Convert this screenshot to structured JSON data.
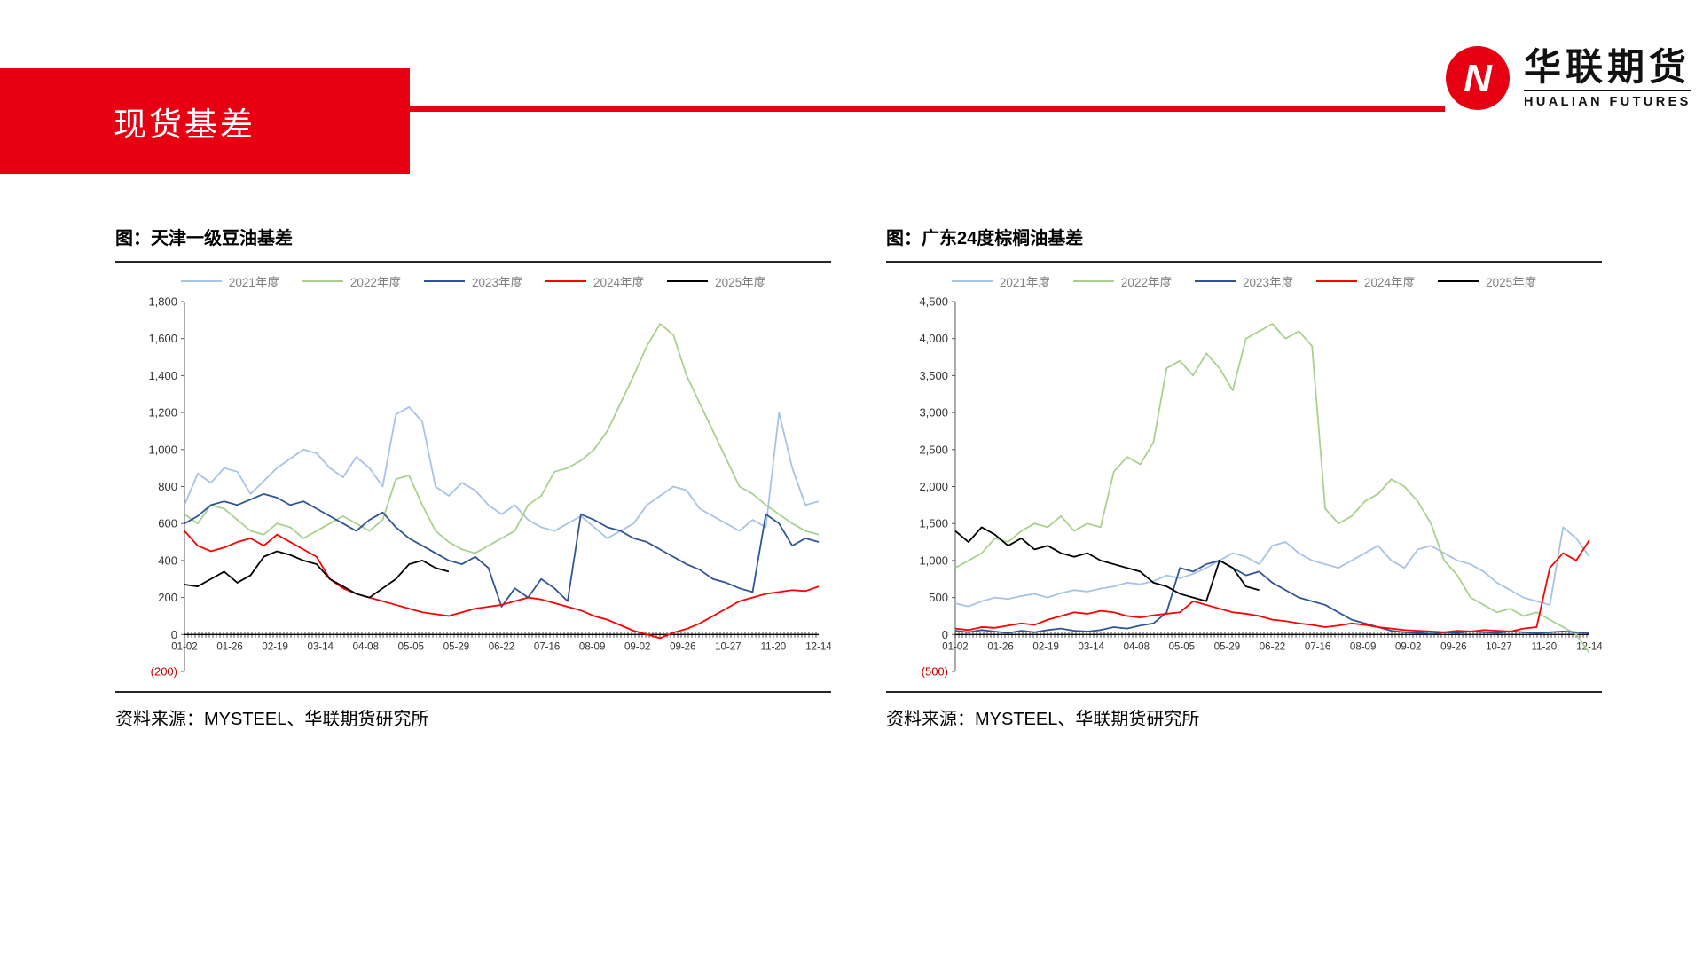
{
  "page": {
    "banner_title": "现货基差"
  },
  "logo": {
    "mark_letter": "N",
    "brand_cn": "华联期货",
    "brand_en": "HUALIAN FUTURES"
  },
  "colors": {
    "brand_red": "#e60012",
    "negative_tick_label": "#c00000",
    "axis_line": "#595959",
    "zero_axis": "#000000",
    "legend_label": "#7f7f7f"
  },
  "chart_data": [
    {
      "type": "line",
      "title": "图：天津一级豆油基差",
      "source": "资料来源：MYSTEEL、华联期货研究所",
      "grid": false,
      "legend_position": "top",
      "ylim": [
        -200,
        1800
      ],
      "y_tick_step": 200,
      "y_tick_labels": [
        "1,800",
        "1,600",
        "1,400",
        "1,200",
        "1,000",
        "800",
        "600",
        "400",
        "200",
        "0",
        "(200)"
      ],
      "x_tick_labels": [
        "01-02",
        "01-26",
        "02-19",
        "03-14",
        "04-08",
        "05-05",
        "05-29",
        "06-22",
        "07-16",
        "08-09",
        "09-02",
        "09-26",
        "10-27",
        "11-20",
        "12-14"
      ],
      "series": [
        {
          "name": "2021年度",
          "color": "#a6c3e8",
          "values": [
            700,
            870,
            820,
            900,
            880,
            760,
            830,
            900,
            950,
            1000,
            980,
            900,
            850,
            960,
            900,
            800,
            1190,
            1230,
            1150,
            800,
            750,
            820,
            780,
            700,
            650,
            700,
            620,
            580,
            560,
            600,
            640,
            580,
            520,
            560,
            600,
            700,
            750,
            800,
            780,
            680,
            640,
            600,
            560,
            620,
            580,
            1200,
            900,
            700,
            720
          ]
        },
        {
          "name": "2022年度",
          "color": "#a9d18e",
          "values": [
            650,
            600,
            700,
            680,
            620,
            560,
            540,
            600,
            580,
            520,
            560,
            600,
            640,
            600,
            560,
            620,
            840,
            860,
            700,
            560,
            500,
            460,
            440,
            480,
            520,
            560,
            700,
            750,
            880,
            900,
            940,
            1000,
            1100,
            1250,
            1400,
            1560,
            1680,
            1620,
            1400,
            1250,
            1100,
            950,
            800,
            760,
            700,
            650,
            600,
            560,
            540
          ]
        },
        {
          "name": "2023年度",
          "color": "#2f5597",
          "values": [
            600,
            640,
            700,
            720,
            700,
            730,
            760,
            740,
            700,
            720,
            680,
            640,
            600,
            560,
            620,
            660,
            580,
            520,
            480,
            440,
            400,
            380,
            420,
            360,
            150,
            250,
            200,
            300,
            250,
            180,
            650,
            620,
            580,
            560,
            520,
            500,
            460,
            420,
            380,
            350,
            300,
            280,
            250,
            230,
            650,
            600,
            480,
            520,
            500
          ]
        },
        {
          "name": "2024年度",
          "color": "#ff0000",
          "values": [
            560,
            480,
            450,
            470,
            500,
            520,
            480,
            540,
            500,
            460,
            420,
            300,
            250,
            220,
            200,
            180,
            160,
            140,
            120,
            110,
            100,
            120,
            140,
            150,
            160,
            180,
            200,
            190,
            170,
            150,
            130,
            100,
            80,
            50,
            20,
            0,
            -20,
            10,
            30,
            60,
            100,
            140,
            180,
            200,
            220,
            230,
            240,
            235,
            260
          ]
        },
        {
          "name": "2025年度",
          "color": "#000000",
          "values": [
            270,
            260,
            300,
            340,
            280,
            320,
            420,
            450,
            430,
            400,
            380,
            300,
            260,
            220,
            200,
            250,
            300,
            380,
            400,
            360,
            340
          ]
        }
      ]
    },
    {
      "type": "line",
      "title": "图：广东24度棕榈油基差",
      "source": "资料来源：MYSTEEL、华联期货研究所",
      "grid": false,
      "legend_position": "top",
      "ylim": [
        -500,
        4500
      ],
      "y_tick_step": 500,
      "y_tick_labels": [
        "4,500",
        "4,000",
        "3,500",
        "3,000",
        "2,500",
        "2,000",
        "1,500",
        "1,000",
        "500",
        "0",
        "(500)"
      ],
      "x_tick_labels": [
        "01-02",
        "01-26",
        "02-19",
        "03-14",
        "04-08",
        "05-05",
        "05-29",
        "06-22",
        "07-16",
        "08-09",
        "09-02",
        "09-26",
        "10-27",
        "11-20",
        "12-14"
      ],
      "series": [
        {
          "name": "2021年度",
          "color": "#a6c3e8",
          "values": [
            420,
            380,
            450,
            500,
            480,
            520,
            550,
            500,
            560,
            600,
            580,
            620,
            650,
            700,
            680,
            720,
            800,
            760,
            820,
            900,
            1000,
            1100,
            1050,
            950,
            1200,
            1250,
            1100,
            1000,
            950,
            900,
            1000,
            1100,
            1200,
            1000,
            900,
            1150,
            1200,
            1100,
            1000,
            950,
            850,
            700,
            600,
            500,
            450,
            400,
            1450,
            1300,
            1050
          ]
        },
        {
          "name": "2022年度",
          "color": "#a9d18e",
          "values": [
            900,
            1000,
            1100,
            1300,
            1250,
            1400,
            1500,
            1450,
            1600,
            1400,
            1500,
            1450,
            2200,
            2400,
            2300,
            2600,
            3600,
            3700,
            3500,
            3800,
            3600,
            3300,
            4000,
            4100,
            4200,
            4000,
            4100,
            3900,
            1700,
            1500,
            1600,
            1800,
            1900,
            2100,
            2000,
            1800,
            1500,
            1000,
            800,
            500,
            400,
            300,
            350,
            250,
            300,
            200,
            100,
            0,
            -250
          ]
        },
        {
          "name": "2023年度",
          "color": "#2f5597",
          "values": [
            50,
            30,
            60,
            40,
            20,
            50,
            30,
            60,
            80,
            50,
            40,
            60,
            100,
            80,
            120,
            150,
            300,
            900,
            850,
            950,
            1000,
            900,
            800,
            850,
            700,
            600,
            500,
            450,
            400,
            300,
            200,
            150,
            100,
            50,
            30,
            20,
            10,
            30,
            20,
            40,
            30,
            20,
            40,
            30,
            20,
            30,
            40,
            30,
            20
          ]
        },
        {
          "name": "2024年度",
          "color": "#ff0000",
          "values": [
            80,
            60,
            100,
            90,
            120,
            150,
            130,
            200,
            250,
            300,
            280,
            320,
            300,
            250,
            230,
            260,
            280,
            300,
            450,
            400,
            350,
            300,
            280,
            250,
            200,
            180,
            150,
            130,
            100,
            120,
            150,
            130,
            100,
            80,
            60,
            50,
            40,
            30,
            50,
            40,
            60,
            50,
            40,
            80,
            100,
            900,
            1100,
            1000,
            1280
          ]
        },
        {
          "name": "2025年度",
          "color": "#000000",
          "values": [
            1400,
            1250,
            1450,
            1350,
            1200,
            1300,
            1150,
            1200,
            1100,
            1050,
            1100,
            1000,
            950,
            900,
            850,
            700,
            650,
            550,
            500,
            450,
            1000,
            900,
            650,
            600
          ]
        }
      ]
    }
  ]
}
